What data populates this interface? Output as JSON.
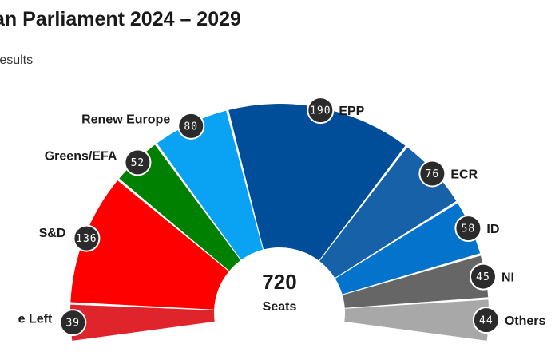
{
  "header": {
    "title": "an Parliament 2024 – 2029",
    "subtitle": "results"
  },
  "chart_data": {
    "type": "pie",
    "subtype": "parliament-semicircle",
    "total": "720",
    "total_label": "Seats",
    "categories": [
      "e Left",
      "S&D",
      "Greens/EFA",
      "Renew Europe",
      "EPP",
      "ECR",
      "ID",
      "NI",
      "Others"
    ],
    "values": [
      39,
      136,
      52,
      80,
      190,
      76,
      58,
      45,
      44
    ],
    "colors": [
      "#e0242c",
      "#ff0000",
      "#008000",
      "#0aa3f4",
      "#004e9a",
      "#1661a8",
      "#0473cc",
      "#666666",
      "#a8a8a8"
    ]
  }
}
